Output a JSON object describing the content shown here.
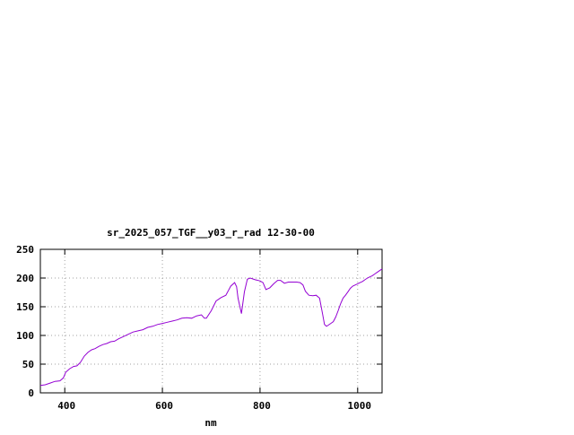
{
  "chart_data": {
    "type": "line",
    "title": "sr_2025_057_TGF__y03_r_rad 12-30-00",
    "xlabel": "nm",
    "ylabel": "",
    "xlim": [
      350,
      1050
    ],
    "ylim": [
      0,
      250
    ],
    "xticks": [
      400,
      600,
      800,
      1000
    ],
    "yticks": [
      0,
      50,
      100,
      150,
      200,
      250
    ],
    "grid": true,
    "series_color": "#9400d3",
    "series": [
      {
        "x": [
          350,
          360,
          370,
          380,
          390,
          397,
          402,
          410,
          418,
          425,
          432,
          440,
          448,
          455,
          462,
          470,
          478,
          486,
          494,
          502,
          510,
          520,
          530,
          540,
          550,
          560,
          570,
          580,
          590,
          600,
          610,
          620,
          630,
          640,
          650,
          660,
          670,
          680,
          686,
          690,
          700,
          710,
          720,
          730,
          740,
          748,
          752,
          755,
          762,
          768,
          774,
          780,
          790,
          800,
          806,
          812,
          820,
          828,
          836,
          842,
          850,
          858,
          866,
          875,
          882,
          888,
          893,
          900,
          908,
          915,
          922,
          928,
          932,
          936,
          940,
          945,
          950,
          955,
          960,
          965,
          970,
          975,
          980,
          985,
          990,
          995,
          1000,
          1005,
          1010,
          1015,
          1020,
          1025,
          1030,
          1035,
          1040,
          1045,
          1050
        ],
        "y": [
          13,
          14,
          17,
          20,
          21,
          26,
          36,
          42,
          46,
          47,
          53,
          64,
          71,
          75,
          77,
          81,
          84,
          86,
          89,
          90,
          94,
          98,
          102,
          106,
          108,
          110,
          114,
          116,
          119,
          121,
          123,
          125,
          127,
          130,
          131,
          130,
          134,
          136,
          130,
          130,
          143,
          160,
          166,
          170,
          186,
          192,
          185,
          165,
          138,
          176,
          198,
          200,
          197,
          195,
          192,
          180,
          183,
          190,
          196,
          196,
          191,
          193,
          193,
          193,
          192,
          188,
          177,
          170,
          169,
          170,
          165,
          138,
          119,
          116,
          118,
          121,
          124,
          132,
          143,
          155,
          165,
          170,
          176,
          182,
          186,
          188,
          190,
          192,
          194,
          197,
          200,
          202,
          204,
          207,
          210,
          213,
          216
        ]
      }
    ]
  }
}
